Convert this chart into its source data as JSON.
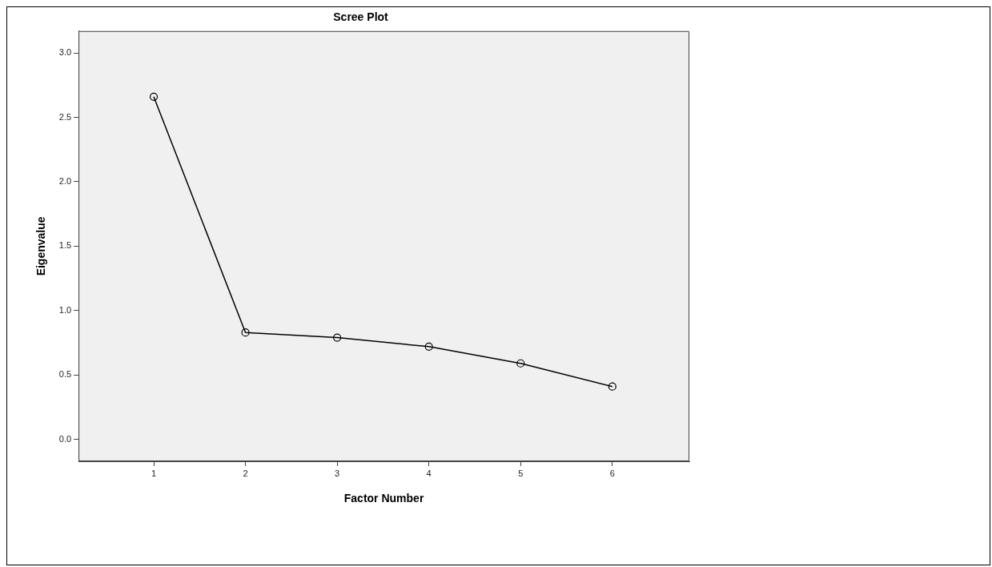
{
  "chart_data": {
    "type": "line",
    "title": "Scree Plot",
    "xlabel": "Factor Number",
    "ylabel": "Eigenvalue",
    "x": [
      1,
      2,
      3,
      4,
      5,
      6
    ],
    "series": [
      {
        "color": "#000000",
        "values": [
          2.66,
          0.83,
          0.79,
          0.72,
          0.59,
          0.41
        ]
      }
    ],
    "xlim": [
      0.18,
      6.84
    ],
    "xticks": [
      1,
      2,
      3,
      4,
      5,
      6
    ],
    "ylim": [
      -0.17,
      3.17
    ],
    "yticks": [
      {
        "value": 0,
        "label": "0.0"
      },
      {
        "value": 0.5,
        "label": "0.5"
      },
      {
        "value": 1,
        "label": "1.0"
      },
      {
        "value": 1.5,
        "label": "1.5"
      },
      {
        "value": 2,
        "label": "2.0"
      },
      {
        "value": 2.5,
        "label": "2.5"
      },
      {
        "value": 3,
        "label": "3.0"
      }
    ],
    "grid": false,
    "legend": false,
    "marker": "circle",
    "line_style": "solid"
  }
}
